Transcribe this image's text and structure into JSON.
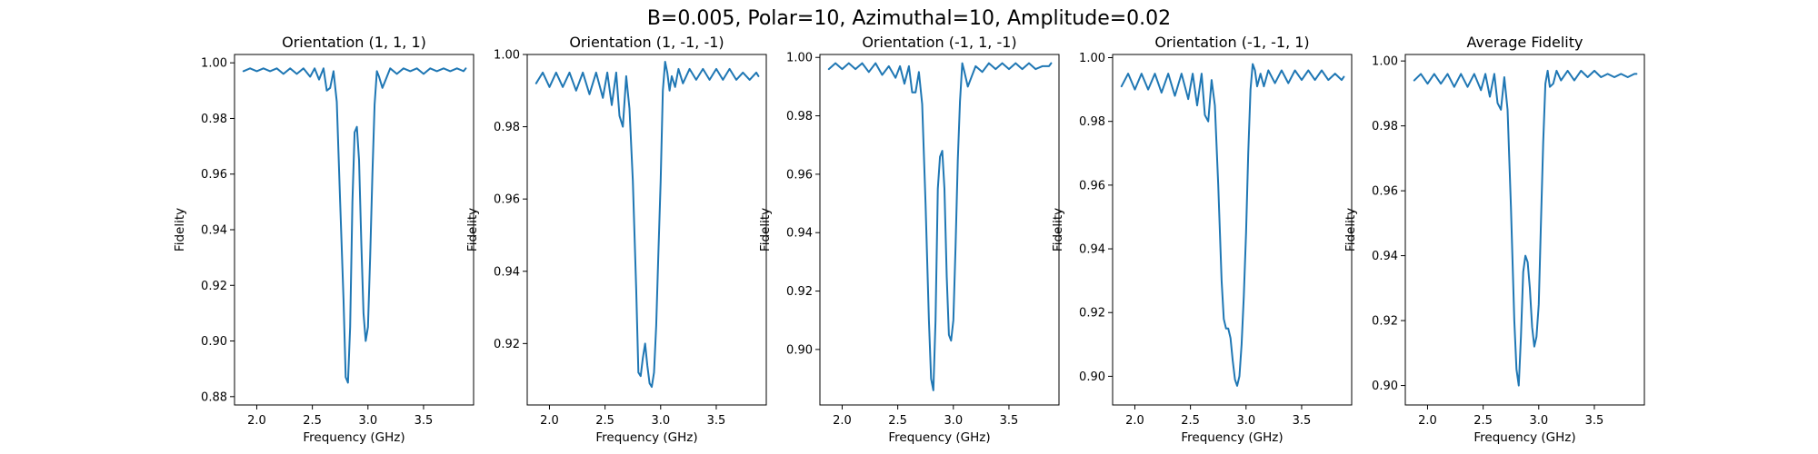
{
  "figure": {
    "suptitle": "B=0.005, Polar=10, Azimuthal=10, Amplitude=0.02",
    "line_color": "#1f77b4"
  },
  "chart_data": [
    {
      "type": "line",
      "title": "Orientation (1, 1, 1)",
      "xlabel": "Frequency (GHz)",
      "ylabel": "Fidelity",
      "xlim": [
        1.8,
        3.95
      ],
      "ylim": [
        0.877,
        1.003
      ],
      "xticks": [
        "2.0",
        "2.5",
        "3.0",
        "3.5"
      ],
      "yticks": [
        "0.88",
        "0.90",
        "0.92",
        "0.94",
        "0.96",
        "0.98",
        "1.00"
      ],
      "grid": false,
      "x": [
        1.88,
        1.94,
        2.0,
        2.06,
        2.12,
        2.18,
        2.24,
        2.3,
        2.36,
        2.42,
        2.48,
        2.52,
        2.56,
        2.6,
        2.63,
        2.66,
        2.69,
        2.72,
        2.75,
        2.78,
        2.8,
        2.82,
        2.84,
        2.86,
        2.88,
        2.9,
        2.92,
        2.94,
        2.96,
        2.98,
        3.0,
        3.02,
        3.04,
        3.06,
        3.08,
        3.1,
        3.13,
        3.16,
        3.2,
        3.26,
        3.32,
        3.38,
        3.44,
        3.5,
        3.56,
        3.62,
        3.68,
        3.74,
        3.8,
        3.86,
        3.88
      ],
      "y": [
        0.997,
        0.998,
        0.997,
        0.998,
        0.997,
        0.998,
        0.996,
        0.998,
        0.996,
        0.998,
        0.995,
        0.998,
        0.994,
        0.998,
        0.99,
        0.991,
        0.997,
        0.986,
        0.95,
        0.915,
        0.887,
        0.885,
        0.905,
        0.95,
        0.975,
        0.977,
        0.965,
        0.935,
        0.91,
        0.9,
        0.905,
        0.93,
        0.96,
        0.985,
        0.997,
        0.995,
        0.991,
        0.994,
        0.998,
        0.996,
        0.998,
        0.997,
        0.998,
        0.996,
        0.998,
        0.997,
        0.998,
        0.997,
        0.998,
        0.997,
        0.998
      ]
    },
    {
      "type": "line",
      "title": "Orientation (1, -1, -1)",
      "xlabel": "Frequency (GHz)",
      "ylabel": "Fidelity",
      "xlim": [
        1.8,
        3.95
      ],
      "ylim": [
        0.903,
        1.0
      ],
      "xticks": [
        "2.0",
        "2.5",
        "3.0",
        "3.5"
      ],
      "yticks": [
        "0.92",
        "0.94",
        "0.96",
        "0.98",
        "1.00"
      ],
      "grid": false,
      "x": [
        1.88,
        1.94,
        2.0,
        2.06,
        2.12,
        2.18,
        2.24,
        2.3,
        2.36,
        2.42,
        2.48,
        2.52,
        2.56,
        2.6,
        2.63,
        2.66,
        2.69,
        2.72,
        2.75,
        2.78,
        2.8,
        2.82,
        2.84,
        2.86,
        2.88,
        2.9,
        2.92,
        2.94,
        2.96,
        2.98,
        3.0,
        3.02,
        3.04,
        3.06,
        3.08,
        3.1,
        3.13,
        3.16,
        3.2,
        3.26,
        3.32,
        3.38,
        3.44,
        3.5,
        3.56,
        3.62,
        3.68,
        3.74,
        3.8,
        3.86,
        3.88
      ],
      "y": [
        0.992,
        0.995,
        0.991,
        0.995,
        0.991,
        0.995,
        0.99,
        0.995,
        0.989,
        0.995,
        0.988,
        0.995,
        0.986,
        0.995,
        0.983,
        0.98,
        0.994,
        0.985,
        0.965,
        0.935,
        0.912,
        0.911,
        0.916,
        0.92,
        0.914,
        0.909,
        0.908,
        0.912,
        0.925,
        0.945,
        0.965,
        0.99,
        0.998,
        0.995,
        0.99,
        0.994,
        0.991,
        0.996,
        0.992,
        0.996,
        0.993,
        0.996,
        0.993,
        0.996,
        0.993,
        0.996,
        0.993,
        0.995,
        0.993,
        0.995,
        0.994
      ]
    },
    {
      "type": "line",
      "title": "Orientation (-1, 1, -1)",
      "xlabel": "Frequency (GHz)",
      "ylabel": "Fidelity",
      "xlim": [
        1.8,
        3.95
      ],
      "ylim": [
        0.881,
        1.001
      ],
      "xticks": [
        "2.0",
        "2.5",
        "3.0",
        "3.5"
      ],
      "yticks": [
        "0.90",
        "0.92",
        "0.94",
        "0.96",
        "0.98",
        "1.00"
      ],
      "grid": false,
      "x": [
        1.88,
        1.94,
        2.0,
        2.06,
        2.12,
        2.18,
        2.24,
        2.3,
        2.36,
        2.42,
        2.48,
        2.52,
        2.56,
        2.6,
        2.63,
        2.66,
        2.69,
        2.72,
        2.75,
        2.78,
        2.8,
        2.82,
        2.84,
        2.86,
        2.88,
        2.9,
        2.92,
        2.94,
        2.96,
        2.98,
        3.0,
        3.02,
        3.04,
        3.06,
        3.08,
        3.1,
        3.13,
        3.16,
        3.2,
        3.26,
        3.32,
        3.38,
        3.44,
        3.5,
        3.56,
        3.62,
        3.68,
        3.74,
        3.8,
        3.86,
        3.88
      ],
      "y": [
        0.996,
        0.998,
        0.996,
        0.998,
        0.996,
        0.998,
        0.995,
        0.998,
        0.994,
        0.997,
        0.993,
        0.997,
        0.991,
        0.997,
        0.988,
        0.988,
        0.995,
        0.984,
        0.95,
        0.91,
        0.89,
        0.886,
        0.91,
        0.955,
        0.966,
        0.968,
        0.955,
        0.925,
        0.905,
        0.903,
        0.91,
        0.935,
        0.965,
        0.985,
        0.998,
        0.995,
        0.99,
        0.993,
        0.997,
        0.995,
        0.998,
        0.996,
        0.998,
        0.996,
        0.998,
        0.996,
        0.998,
        0.996,
        0.997,
        0.997,
        0.998
      ]
    },
    {
      "type": "line",
      "title": "Orientation (-1, -1, 1)",
      "xlabel": "Frequency (GHz)",
      "ylabel": "Fidelity",
      "xlim": [
        1.8,
        3.95
      ],
      "ylim": [
        0.891,
        1.001
      ],
      "xticks": [
        "2.0",
        "2.5",
        "3.0",
        "3.5"
      ],
      "yticks": [
        "0.90",
        "0.92",
        "0.94",
        "0.96",
        "0.98",
        "1.00"
      ],
      "grid": false,
      "x": [
        1.88,
        1.94,
        2.0,
        2.06,
        2.12,
        2.18,
        2.24,
        2.3,
        2.36,
        2.42,
        2.48,
        2.52,
        2.56,
        2.6,
        2.63,
        2.66,
        2.69,
        2.72,
        2.75,
        2.78,
        2.8,
        2.82,
        2.84,
        2.86,
        2.88,
        2.9,
        2.92,
        2.94,
        2.96,
        2.98,
        3.0,
        3.02,
        3.04,
        3.06,
        3.08,
        3.1,
        3.13,
        3.16,
        3.2,
        3.26,
        3.32,
        3.38,
        3.44,
        3.5,
        3.56,
        3.62,
        3.68,
        3.74,
        3.8,
        3.86,
        3.88
      ],
      "y": [
        0.991,
        0.995,
        0.99,
        0.995,
        0.99,
        0.995,
        0.989,
        0.995,
        0.988,
        0.995,
        0.987,
        0.995,
        0.985,
        0.995,
        0.982,
        0.98,
        0.993,
        0.985,
        0.96,
        0.93,
        0.918,
        0.915,
        0.915,
        0.912,
        0.905,
        0.899,
        0.897,
        0.9,
        0.91,
        0.925,
        0.945,
        0.97,
        0.99,
        0.998,
        0.996,
        0.991,
        0.995,
        0.991,
        0.996,
        0.992,
        0.996,
        0.992,
        0.996,
        0.993,
        0.996,
        0.993,
        0.996,
        0.993,
        0.995,
        0.993,
        0.994
      ]
    },
    {
      "type": "line",
      "title": "Average Fidelity",
      "xlabel": "Frequency (GHz)",
      "ylabel": "Fidelity",
      "xlim": [
        1.8,
        3.95
      ],
      "ylim": [
        0.894,
        1.002
      ],
      "xticks": [
        "2.0",
        "2.5",
        "3.0",
        "3.5"
      ],
      "yticks": [
        "0.90",
        "0.92",
        "0.94",
        "0.96",
        "0.98",
        "1.00"
      ],
      "grid": false,
      "x": [
        1.88,
        1.94,
        2.0,
        2.06,
        2.12,
        2.18,
        2.24,
        2.3,
        2.36,
        2.42,
        2.48,
        2.52,
        2.56,
        2.6,
        2.63,
        2.66,
        2.69,
        2.72,
        2.75,
        2.78,
        2.8,
        2.82,
        2.84,
        2.86,
        2.88,
        2.9,
        2.92,
        2.94,
        2.96,
        2.98,
        3.0,
        3.02,
        3.04,
        3.06,
        3.08,
        3.1,
        3.13,
        3.16,
        3.2,
        3.26,
        3.32,
        3.38,
        3.44,
        3.5,
        3.56,
        3.62,
        3.68,
        3.74,
        3.8,
        3.86,
        3.88
      ],
      "y": [
        0.994,
        0.996,
        0.993,
        0.996,
        0.993,
        0.996,
        0.992,
        0.996,
        0.992,
        0.996,
        0.991,
        0.996,
        0.989,
        0.996,
        0.987,
        0.985,
        0.995,
        0.985,
        0.955,
        0.92,
        0.905,
        0.9,
        0.915,
        0.935,
        0.94,
        0.938,
        0.93,
        0.918,
        0.912,
        0.915,
        0.925,
        0.95,
        0.975,
        0.993,
        0.997,
        0.992,
        0.993,
        0.997,
        0.994,
        0.997,
        0.994,
        0.997,
        0.995,
        0.997,
        0.995,
        0.996,
        0.995,
        0.996,
        0.995,
        0.996,
        0.996
      ]
    }
  ]
}
